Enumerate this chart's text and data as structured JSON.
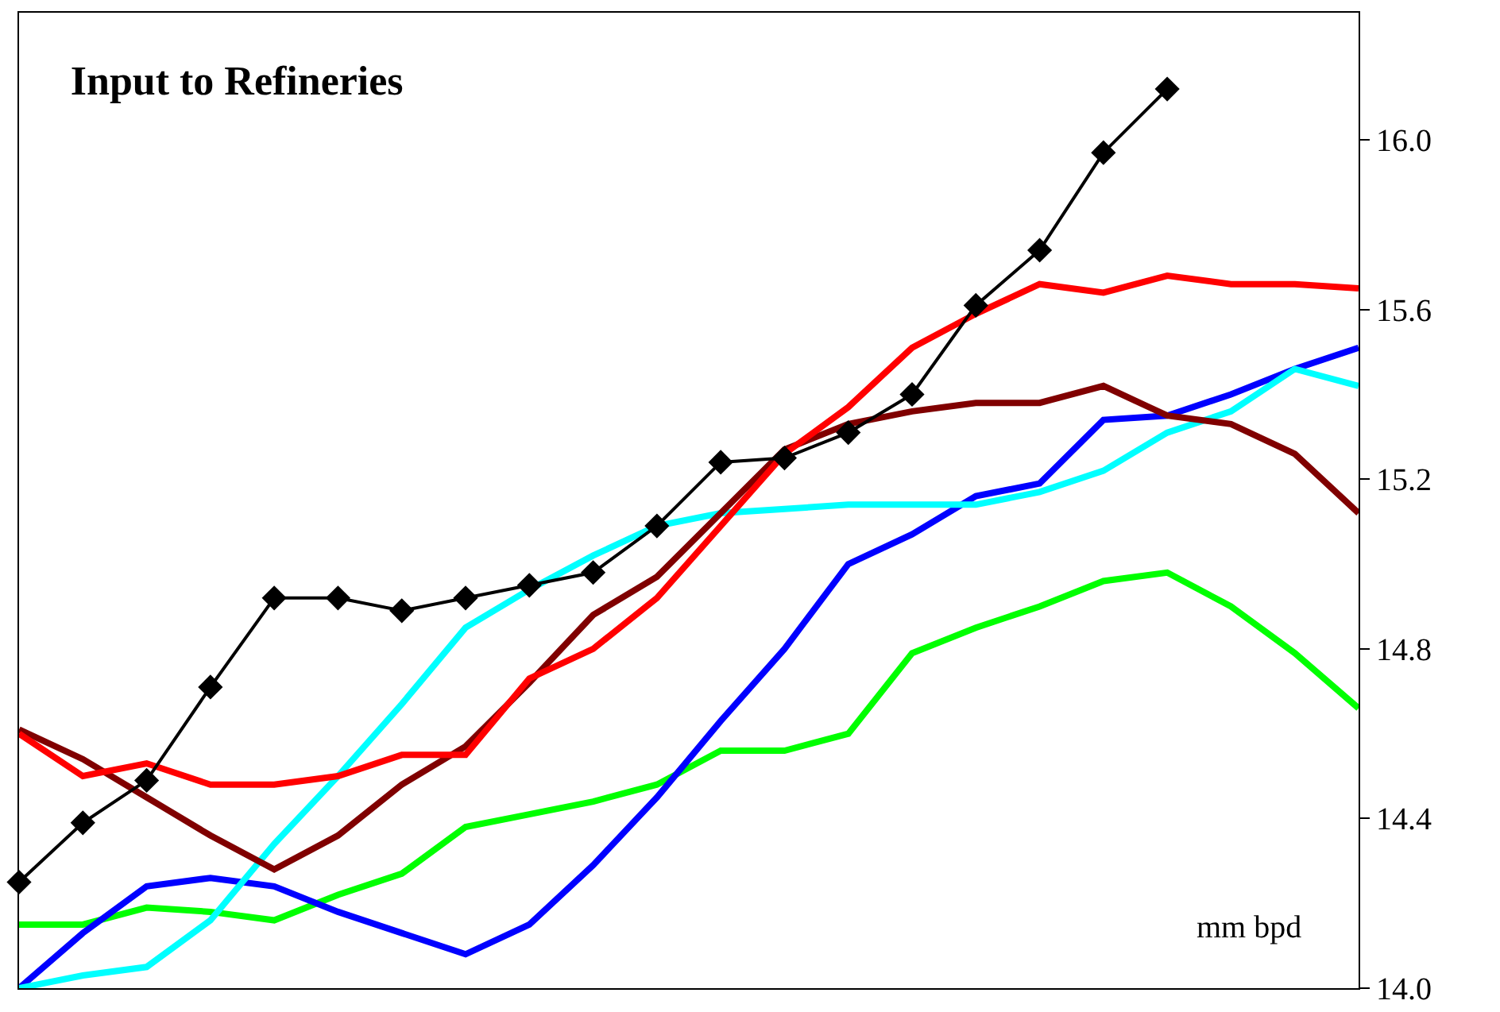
{
  "chart_data": {
    "type": "line",
    "title": "Input to Refineries",
    "annotations": [
      "mm bpd"
    ],
    "categories": [
      null,
      null,
      null,
      null,
      null,
      null,
      null,
      null,
      null,
      null,
      null,
      null,
      null,
      null,
      null,
      null,
      null,
      null,
      null,
      null,
      null,
      null
    ],
    "ylim": [
      14.0,
      16.3
    ],
    "yticks": [
      {
        "value": 14,
        "label": "14.0"
      },
      14.4,
      14.8,
      15.2,
      15.6,
      {
        "value": 16,
        "label": "16.0"
      }
    ],
    "series": [
      {
        "color": "#00ff00",
        "marker": "none",
        "values": [
          14.15,
          14.15,
          14.19,
          14.18,
          14.16,
          14.22,
          14.27,
          14.38,
          14.41,
          14.44,
          14.48,
          14.56,
          14.56,
          14.6,
          14.79,
          14.85,
          14.9,
          14.96,
          14.98,
          14.9,
          14.79,
          14.66
        ]
      },
      {
        "color": "#0000ff",
        "marker": "none",
        "values": [
          14.0,
          14.13,
          14.24,
          14.26,
          14.24,
          14.18,
          14.13,
          14.08,
          14.15,
          14.29,
          14.45,
          14.63,
          14.8,
          15.0,
          15.07,
          15.16,
          15.19,
          15.34,
          15.35,
          15.4,
          15.46,
          15.51
        ]
      },
      {
        "color": "#00ffff",
        "marker": "none",
        "values": [
          14.0,
          14.03,
          14.05,
          14.16,
          14.34,
          14.5,
          14.67,
          14.85,
          14.94,
          15.02,
          15.09,
          15.12,
          15.13,
          15.14,
          15.14,
          15.14,
          15.17,
          15.22,
          15.31,
          15.36,
          15.46,
          15.42
        ]
      },
      {
        "color": "#800000",
        "marker": "none",
        "values": [
          14.61,
          14.54,
          14.45,
          14.36,
          14.28,
          14.36,
          14.48,
          14.57,
          14.72,
          14.88,
          14.97,
          15.12,
          15.27,
          15.33,
          15.36,
          15.38,
          15.38,
          15.42,
          15.35,
          15.33,
          15.26,
          15.12
        ]
      },
      {
        "color": "#ff0000",
        "marker": "none",
        "values": [
          14.6,
          14.5,
          14.53,
          14.48,
          14.48,
          14.5,
          14.55,
          14.55,
          14.73,
          14.8,
          14.92,
          15.09,
          15.26,
          15.37,
          15.51,
          15.59,
          15.66,
          15.64,
          15.68,
          15.66,
          15.66,
          15.65
        ]
      },
      {
        "color": "#000000",
        "marker": "diamond",
        "values": [
          14.25,
          14.39,
          14.49,
          14.71,
          14.92,
          14.92,
          14.89,
          14.92,
          14.95,
          14.98,
          15.09,
          15.24,
          15.25,
          15.31,
          15.4,
          15.61,
          15.74,
          15.97,
          16.12,
          null,
          null,
          null
        ]
      }
    ]
  }
}
